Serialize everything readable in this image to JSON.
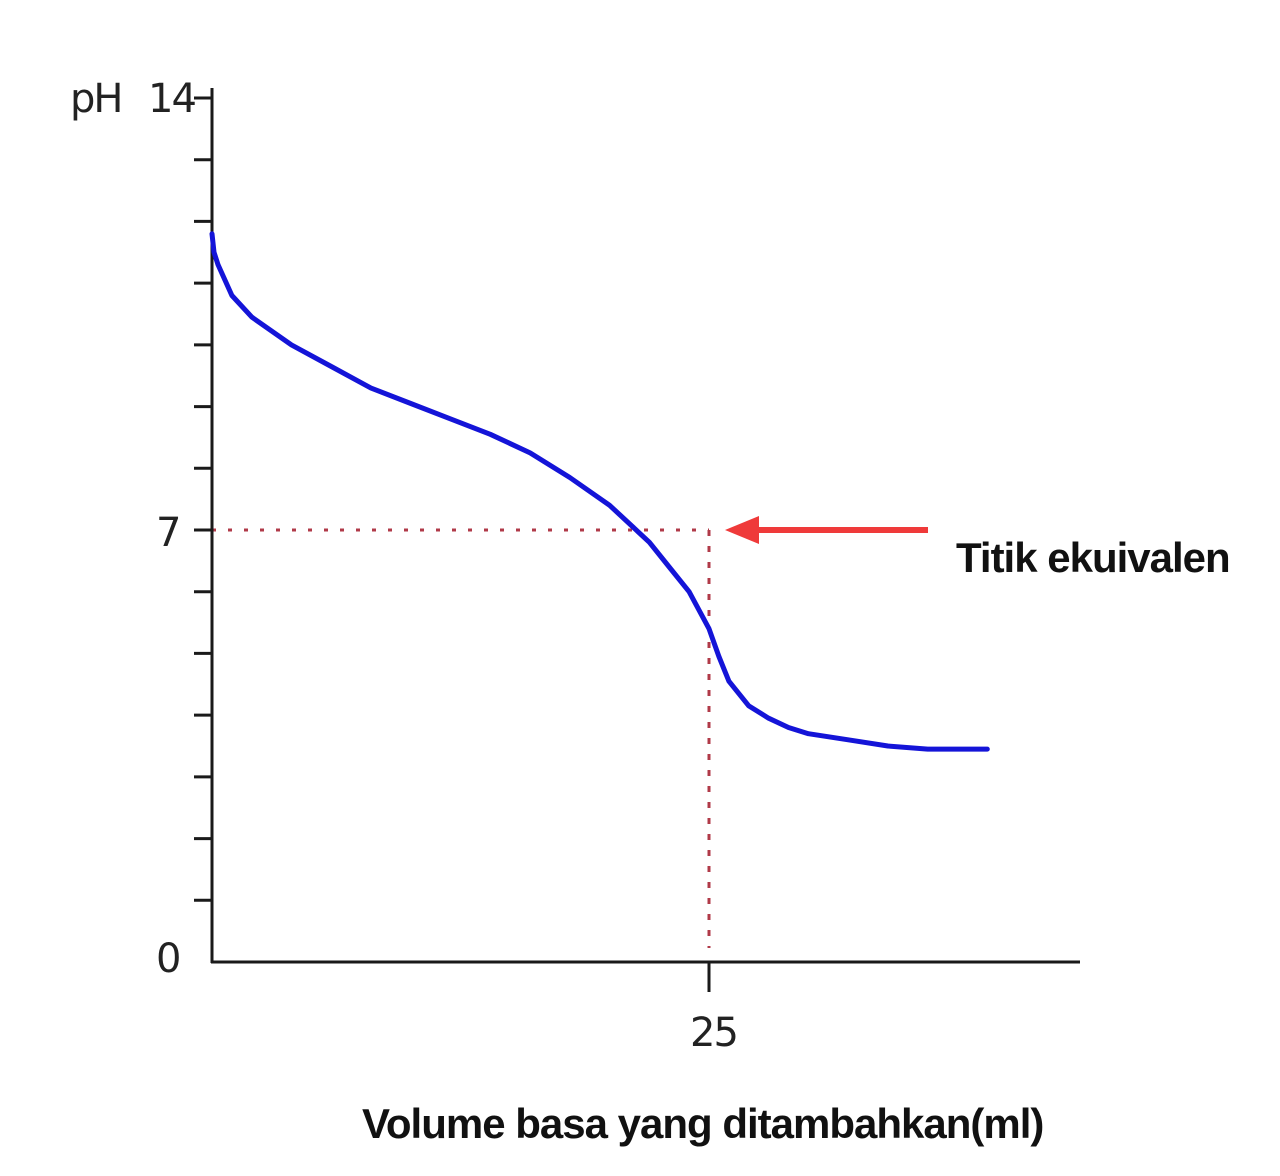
{
  "chart_data": {
    "type": "line",
    "title": "",
    "ylabel": "pH",
    "xlabel": "Volume basa yang ditambahkan(ml)",
    "ylim": [
      0,
      14
    ],
    "y_ticks_labeled": [
      "0",
      "7",
      "14"
    ],
    "y_minor_tick_count": 14,
    "x_ticks_labeled": [
      "25"
    ],
    "grid": false,
    "legend": "none",
    "series": [
      {
        "color": "#1414d8",
        "x": [
          0,
          0.1,
          0.3,
          1,
          2,
          4,
          6,
          8,
          10,
          12,
          14,
          16,
          18,
          20,
          22,
          23,
          24,
          25,
          25.5,
          26,
          27,
          28,
          29,
          30,
          32,
          34,
          36,
          38,
          39
        ],
        "y": [
          11.8,
          11.5,
          11.3,
          10.8,
          10.45,
          10.0,
          9.65,
          9.3,
          9.05,
          8.8,
          8.55,
          8.25,
          7.85,
          7.4,
          6.8,
          6.4,
          6.0,
          5.4,
          4.95,
          4.55,
          4.15,
          3.95,
          3.8,
          3.7,
          3.6,
          3.5,
          3.45,
          3.45,
          3.45
        ]
      }
    ],
    "annotations": [
      {
        "text": "Titik ekuivalen",
        "x": 25,
        "y": 7,
        "arrow_color": "#ef3a3a",
        "dotted_guides": true,
        "guide_color": "#b03a48"
      }
    ]
  }
}
